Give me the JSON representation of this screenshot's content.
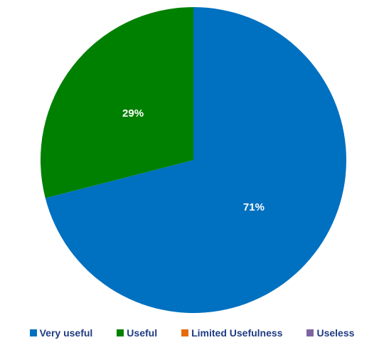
{
  "chart_data": {
    "type": "pie",
    "title": "",
    "categories": [
      "Very useful",
      "Useful",
      "Limited Usefulness",
      "Useless"
    ],
    "values": [
      71,
      29,
      0,
      0
    ],
    "value_labels": [
      "71%",
      "29%",
      "",
      ""
    ],
    "colors": [
      "#0070C0",
      "#008000",
      "#E46C0A",
      "#8064A2"
    ],
    "start_angle_deg": 0,
    "direction": "clockwise",
    "legend_position": "bottom",
    "label_color": "#FFFFFF",
    "legend_text_color": "#1F3B82"
  }
}
